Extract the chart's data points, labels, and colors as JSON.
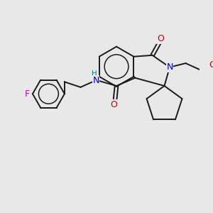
{
  "bg_color": "#e8e8e8",
  "bond_color": "#1a1a1a",
  "atom_colors": {
    "N": "#0000cc",
    "O": "#cc0000",
    "F": "#cc00cc",
    "H": "#008080",
    "C": "#1a1a1a"
  },
  "font_size": 8.5,
  "lw": 1.4,
  "figsize": [
    3.0,
    3.0
  ],
  "dpi": 100
}
